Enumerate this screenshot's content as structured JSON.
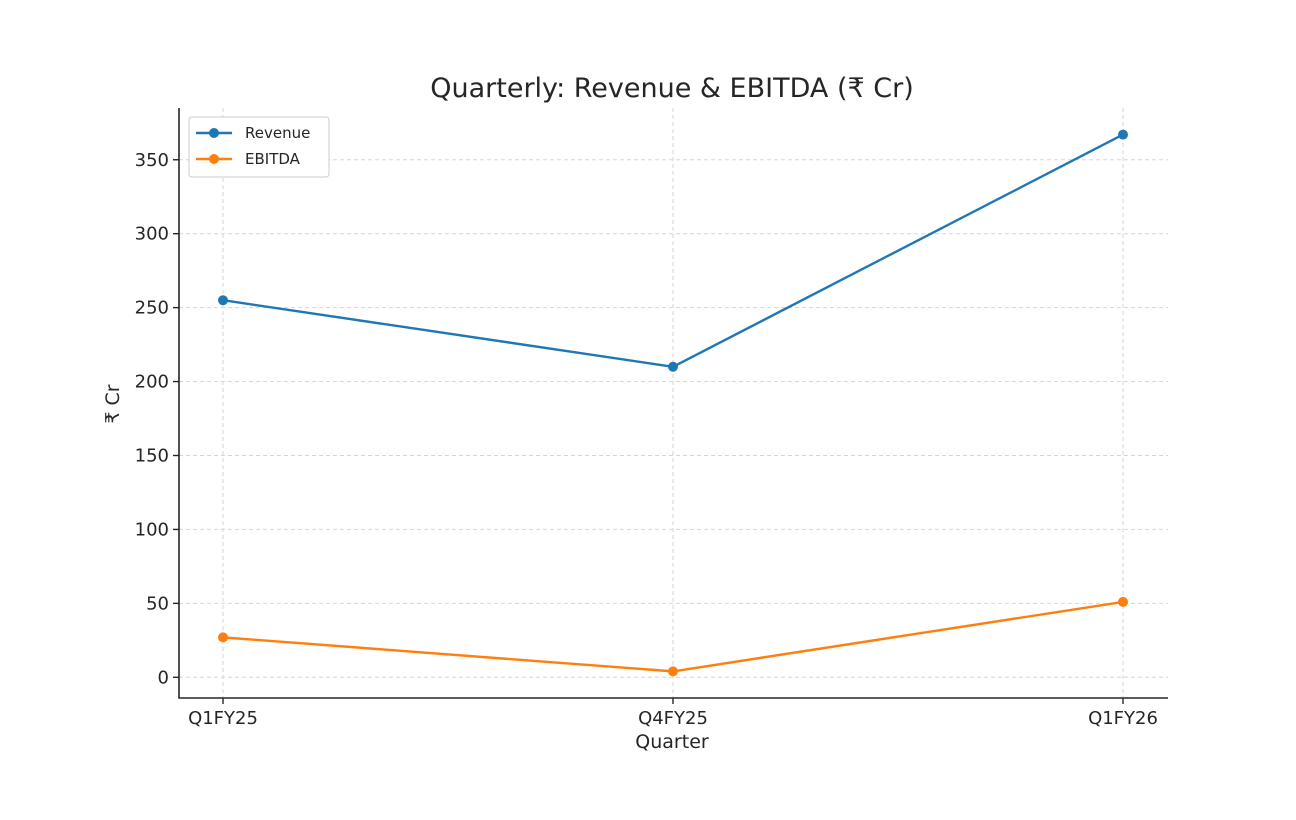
{
  "chart_data": {
    "type": "line",
    "title": "Quarterly: Revenue & EBITDA (₹ Cr)",
    "xlabel": "Quarter",
    "ylabel": "₹ Cr",
    "categories": [
      "Q1FY25",
      "Q4FY25",
      "Q1FY26"
    ],
    "yticks": [
      0,
      50,
      100,
      150,
      200,
      250,
      300,
      350
    ],
    "ylim": [
      -14,
      385
    ],
    "grid": true,
    "legend_position": "top-left",
    "series": [
      {
        "name": "Revenue",
        "values": [
          255,
          210,
          367
        ],
        "color": "#1f77b4"
      },
      {
        "name": "EBITDA",
        "values": [
          27,
          4,
          51
        ],
        "color": "#ff7f0e"
      }
    ]
  }
}
